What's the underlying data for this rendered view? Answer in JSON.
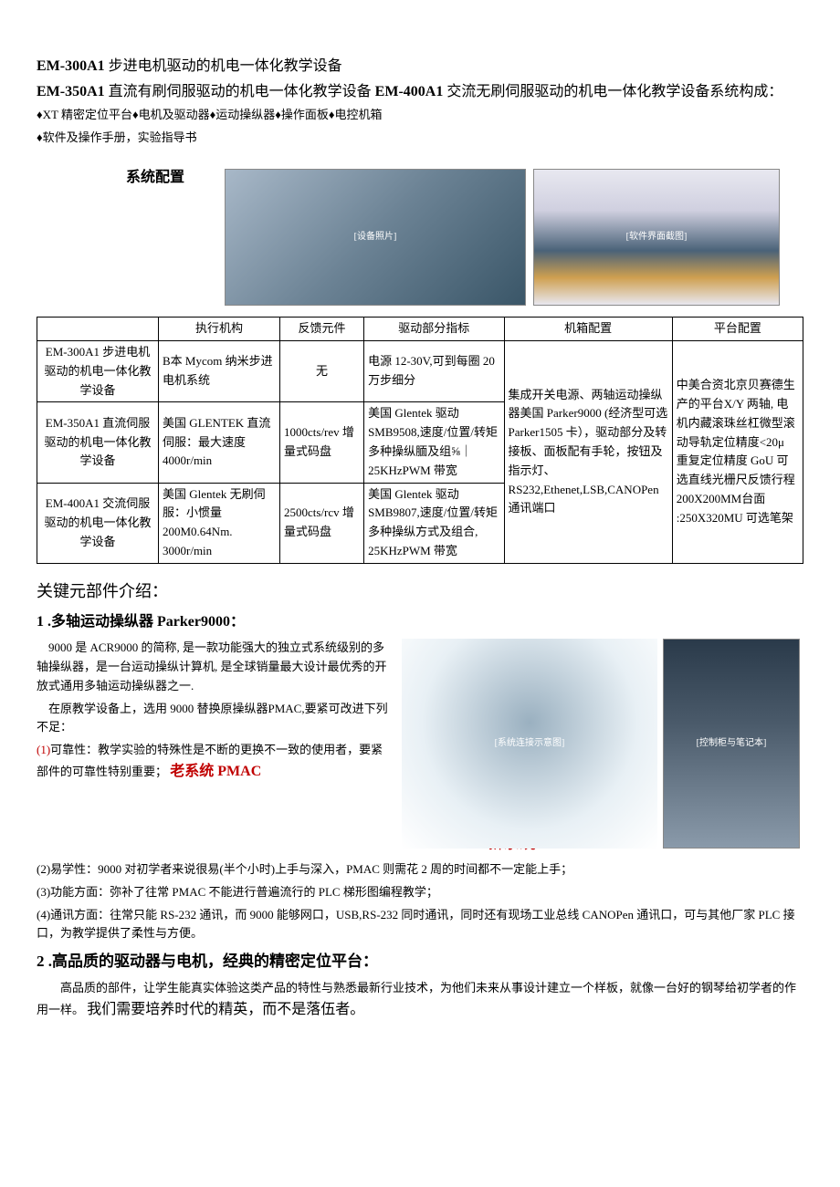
{
  "title": {
    "line1_bold": "EM-300A1",
    "line1_rest": " 步进电机驱动的机电一体化教学设备",
    "line2_b1": "EM-350A1",
    "line2_t1": " 直流有刷伺服驱动的机电一体化教学设备 ",
    "line2_b2": "EM-400A1",
    "line2_t2": " 交流无刷伺服驱动的机电一体化教学设备系统构成：",
    "line2_t3": "♦XT 精密定位平台♦电机及驱动器♦运动操纵器♦操作面板♦电控机箱",
    "line3": "♦软件及操作手册，实验指导书"
  },
  "config_heading": "系统配置",
  "img_alt1": "[设备照片]",
  "img_alt2": "[软件界面截图]",
  "table": {
    "headers": [
      "",
      "执行机构",
      "反馈元件",
      "驱动部分指标",
      "机箱配置",
      "平台配置"
    ],
    "col_widths": [
      "130px",
      "130px",
      "90px",
      "150px",
      "180px",
      "140px"
    ],
    "rows": [
      {
        "c0": "EM-300A1 步进电机驱动的机电一体化教学设备",
        "c1": "B本 Mycom 纳米步进电机系统",
        "c2": "无",
        "c3": "电源 12-30V,可到每圈 20 万步细分"
      },
      {
        "c0": "EM-350A1 直流伺服驱动的机电一体化教学设备",
        "c1": "美国 GLENTEK 直流伺服：最大速度4000r/min",
        "c2": "1000cts/rev 增量式码盘",
        "c3": "美国 Glentek 驱动 SMB9508,速度/位置/转矩多种操纵腼及组⅝｜25KHzPWM 带宽"
      },
      {
        "c0": "EM-400A1 交流伺服驱动的机电一体化教学设备",
        "c1": "美国 Glentek 无刷伺服：小惯量 200M0.64Nm. 3000r/min",
        "c2": "2500cts/rcv 增量式码盘",
        "c3": "美国 Glentek 驱动 SMB9807,速度/位置/转矩多种操纵方式及组合, 25KHzPWM 带宽"
      }
    ],
    "c4_merged": "集成开关电源、两轴运动操纵器美国 Parker9000 (经济型可选 Parker1505 卡），驱动部分及转接板、面板配有手轮，按钮及指示灯、RS232,Ethenet,LSB,CANOPen 通讯端口",
    "c5_merged": "中美合资北京贝赛德生产的平台X/Y 两轴, 电机内藏滚珠丝杠微型滚动导轨定位精度<20μ 重复定位精度 GoU 可选直线光栅尺反馈行程 200X200MM台面 :250X320MU 可选笔架"
  },
  "key_parts_heading": "关键元部件介绍：",
  "section1": {
    "heading": "1 .多轴运动操纵器 Parker9000：",
    "p1": "9000 是 ACR9000 的简称, 是一款功能强大的独立式系统级别的多轴操纵器，是一台运动操纵计算机, 是全球销量最大设计最优秀的开放式通用多轴运动操纵器之一.",
    "p2": "在原教学设备上，选用 9000 替换原操纵器PMAC,要紧可改进下列不足：",
    "li1_a": "(1)可靠性：教学实验的特殊性是不断的更换不一致的使用者，要紧部件的可靠性特别重要；",
    "li1_b": "老系统 PMAC",
    "new_sys_label": "新系统",
    "li2": "(2)易学性：9000 对初学者来说很易(半个小时)上手与深入，PMAC 则需花 2 周的时间都不一定能上手；",
    "li3": "(3)功能方面：弥补了往常 PMAC 不能进行普遍流行的 PLC 梯形图编程教学；",
    "li4": "(4)通讯方面：往常只能 RS-232 通讯，而 9000 能够网口，USB,RS-232 同时通讯，同时还有现场工业总线 CANOPen 通讯口，可与其他厂家 PLC 接口，为教学提供了柔性与方便。"
  },
  "section2": {
    "heading": "2 .高品质的驱动器与电机，经典的精密定位平台：",
    "p1_a": "高品质的部件，让学生能真实体验这类产品的特性与熟悉最新行业技术，为他们未来从事设计建立一个样板，就像一台好的钢琴给初学者的作用一样。",
    "p1_b": "我们需要培养时代的精英，而不是落伍者。"
  },
  "diagram_alt1": "[系统连接示意图]",
  "diagram_alt2": "[控制柜与笔记本]"
}
